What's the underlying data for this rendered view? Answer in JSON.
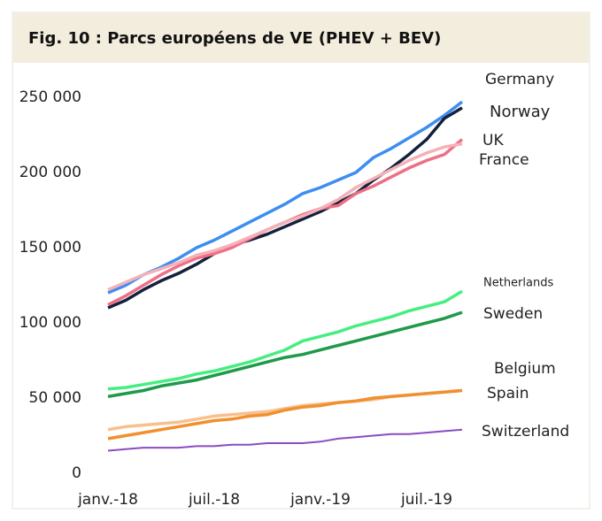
{
  "chart_data": {
    "type": "line",
    "title": "Fig. 10 : Parcs européens de VE (PHEV + BEV)",
    "categories": [
      "janv.-18",
      null,
      null,
      null,
      null,
      null,
      "juil.-18",
      null,
      null,
      null,
      null,
      null,
      "janv.-19",
      null,
      null,
      null,
      null,
      null,
      "juil.-19",
      null,
      null
    ],
    "ylim": [
      0,
      250000
    ],
    "yticks": [
      0,
      {
        "value": 50000,
        "label": "50 000"
      },
      {
        "value": 100000,
        "label": "100 000"
      },
      {
        "value": 150000,
        "label": "150 000"
      },
      {
        "value": 200000,
        "label": "200 000"
      },
      {
        "value": 250000,
        "label": "250 000"
      }
    ],
    "grid": false,
    "series": [
      {
        "name": "Germany",
        "color": "#3d8ef0",
        "values": [
          120000,
          125000,
          132000,
          137000,
          143000,
          150000,
          155000,
          161000,
          167000,
          173000,
          179000,
          186000,
          190000,
          195000,
          200000,
          210000,
          216000,
          223000,
          230000,
          238000,
          247000
        ]
      },
      {
        "name": "Norway",
        "color": "#14213d",
        "values": [
          110000,
          115000,
          122000,
          128000,
          133000,
          139000,
          146000,
          152000,
          155000,
          159000,
          164000,
          169000,
          174000,
          180000,
          186000,
          195000,
          203000,
          212000,
          222000,
          236000,
          243000
        ]
      },
      {
        "name": "UK",
        "color": "#ee6f86",
        "values": [
          112000,
          118000,
          125000,
          132000,
          138000,
          143000,
          146000,
          150000,
          156000,
          162000,
          167000,
          172000,
          176000,
          178000,
          186000,
          191000,
          197000,
          203000,
          208000,
          212000,
          222000
        ]
      },
      {
        "name": "France",
        "color": "#f5b0b8",
        "values": [
          122000,
          127000,
          132000,
          136000,
          140000,
          145000,
          148000,
          152000,
          157000,
          162000,
          167000,
          171000,
          176000,
          182000,
          190000,
          196000,
          202000,
          208000,
          213000,
          217000,
          219000
        ]
      },
      {
        "name": "Netherlands",
        "color": "#45ee80",
        "values": [
          56000,
          57000,
          59000,
          61000,
          63000,
          66000,
          68000,
          71000,
          74000,
          78000,
          82000,
          88000,
          91000,
          94000,
          98000,
          101000,
          104000,
          108000,
          111000,
          114000,
          121000
        ]
      },
      {
        "name": "Sweden",
        "color": "#1f9a4a",
        "values": [
          51000,
          53000,
          55000,
          58000,
          60000,
          62000,
          65000,
          68000,
          71000,
          74000,
          77000,
          79000,
          82000,
          85000,
          88000,
          91000,
          94000,
          97000,
          100000,
          103000,
          107000
        ]
      },
      {
        "name": "Belgium",
        "color": "#f8c08e",
        "values": [
          29000,
          31000,
          32000,
          33000,
          34000,
          36000,
          38000,
          39000,
          40000,
          41000,
          43000,
          45000,
          46000,
          47000,
          48000,
          49000,
          51000,
          52000,
          53000,
          54000,
          55000
        ]
      },
      {
        "name": "Spain",
        "color": "#f0902e",
        "values": [
          23000,
          25000,
          27000,
          29000,
          31000,
          33000,
          35000,
          36000,
          38000,
          39000,
          42000,
          44000,
          45000,
          47000,
          48000,
          50000,
          51000,
          52000,
          53000,
          54000,
          55000
        ]
      },
      {
        "name": "Switzerland",
        "color": "#8a4cc0",
        "values": [
          15000,
          16000,
          17000,
          17000,
          17000,
          18000,
          18000,
          19000,
          19000,
          20000,
          20000,
          20000,
          21000,
          23000,
          24000,
          25000,
          26000,
          26000,
          27000,
          28000,
          29000
        ]
      }
    ]
  }
}
